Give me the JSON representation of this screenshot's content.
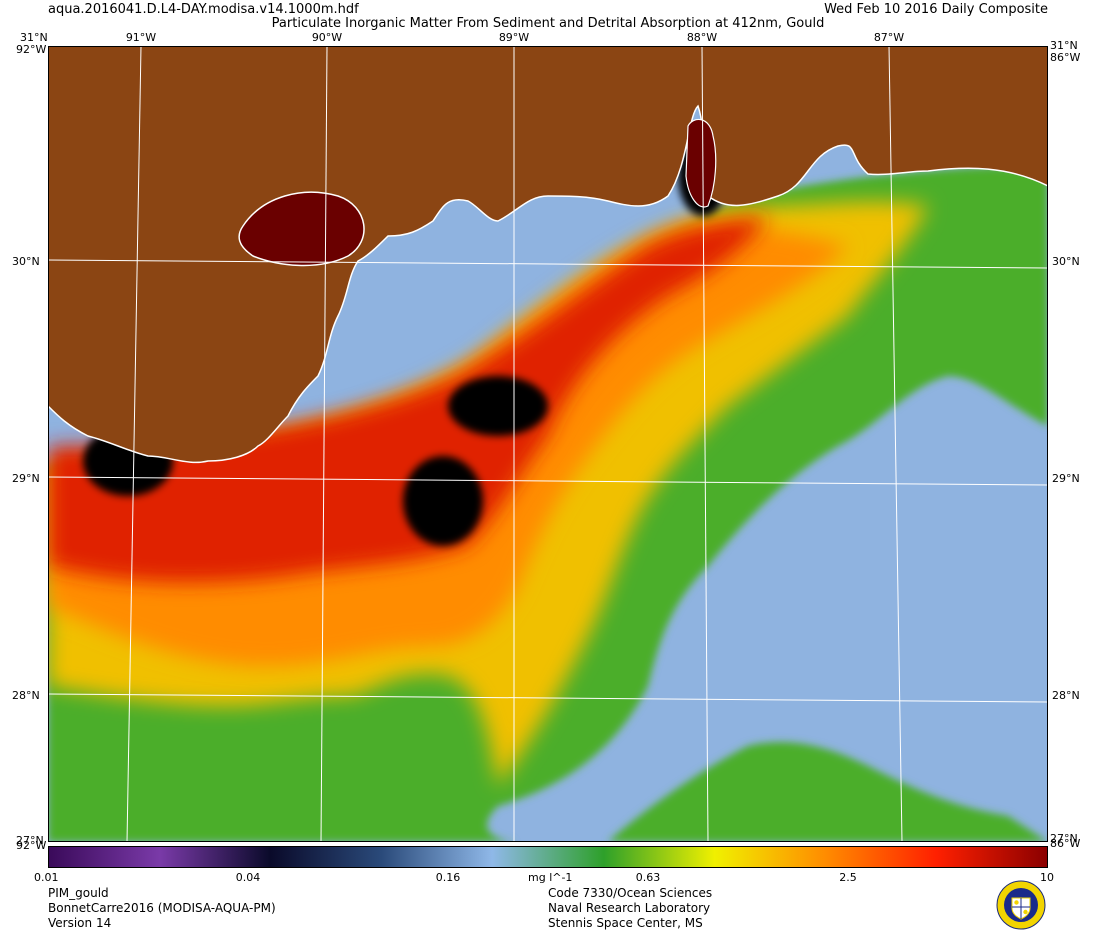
{
  "header": {
    "filename": "aqua.2016041.D.L4-DAY.modisa.v14.1000m.hdf",
    "product_title": "Particulate Inorganic Matter From Sediment and Detrital Absorption at 412nm, Gould",
    "date_label": "Wed Feb 10 2016 Daily Composite"
  },
  "map": {
    "longitude_labels": [
      "91°W",
      "90°W",
      "89°W",
      "88°W",
      "87°W"
    ],
    "latitude_labels": [
      "31°N",
      "30°N",
      "29°N",
      "28°N"
    ],
    "corner_labels": {
      "top_left_lat": "31°N",
      "top_left_lon": "92°W",
      "top_right_lat": "31°N",
      "top_right_lon": "86°W",
      "bottom_left_lat": "27°N",
      "bottom_left_lon": "92°W",
      "bottom_right_lat": "27°N",
      "bottom_right_lon": "86°W"
    },
    "colors": {
      "land": "#8b4513",
      "coastline": "#ffffff",
      "grid": "#ffffff",
      "deep_water": "#8fb3e0",
      "shelf_green": "#4cae2c",
      "sediment_yellow": "#f0c000",
      "sediment_red": "#e02000",
      "saturated": "#000000"
    }
  },
  "colorbar": {
    "tick_labels": [
      "0.01",
      "0.04",
      "0.16",
      "0.63",
      "2.5",
      "10"
    ],
    "units": "mg l^-1",
    "colors": [
      "#3a0a5a",
      "#7a3aa8",
      "#0a0a2a",
      "#2a4a7a",
      "#8fb8e8",
      "#2ea02a",
      "#f0f000",
      "#ff8c00",
      "#ff2000",
      "#8b0000"
    ]
  },
  "footer": {
    "left": [
      "PIM_gould",
      "BonnetCarre2016 (MODISA-AQUA-PM)",
      "Version 14"
    ],
    "right": [
      "Code 7330/Ocean Sciences",
      "Naval Research Laboratory",
      "Stennis Space Center, MS"
    ]
  },
  "logo": {
    "icon": "nrl-seal-icon"
  }
}
